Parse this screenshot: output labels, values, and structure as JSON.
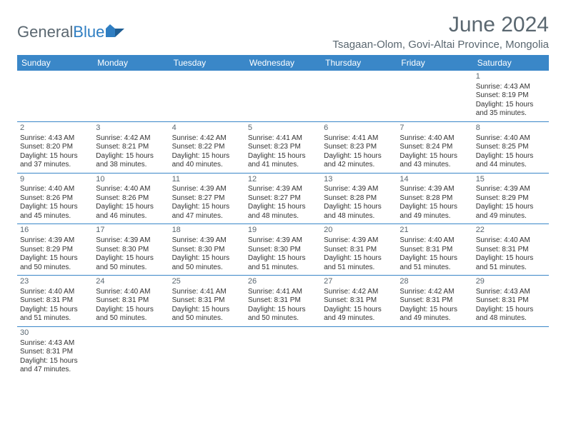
{
  "logo": {
    "part1": "General",
    "part2": "Blue"
  },
  "title": "June 2024",
  "location": "Tsagaan-Olom, Govi-Altai Province, Mongolia",
  "colors": {
    "header_bg": "#3a87c8",
    "header_text": "#ffffff",
    "text_muted": "#5a6770",
    "cell_border": "#3a87c8",
    "body_text": "#333333",
    "background": "#ffffff"
  },
  "fonts": {
    "title_size": 30,
    "location_size": 15,
    "day_header_size": 12,
    "cell_size": 10
  },
  "day_headers": [
    "Sunday",
    "Monday",
    "Tuesday",
    "Wednesday",
    "Thursday",
    "Friday",
    "Saturday"
  ],
  "weeks": [
    [
      {
        "empty": true
      },
      {
        "empty": true
      },
      {
        "empty": true
      },
      {
        "empty": true
      },
      {
        "empty": true
      },
      {
        "empty": true
      },
      {
        "num": "1",
        "sunrise": "Sunrise: 4:43 AM",
        "sunset": "Sunset: 8:19 PM",
        "daylight1": "Daylight: 15 hours",
        "daylight2": "and 35 minutes."
      }
    ],
    [
      {
        "num": "2",
        "sunrise": "Sunrise: 4:43 AM",
        "sunset": "Sunset: 8:20 PM",
        "daylight1": "Daylight: 15 hours",
        "daylight2": "and 37 minutes."
      },
      {
        "num": "3",
        "sunrise": "Sunrise: 4:42 AM",
        "sunset": "Sunset: 8:21 PM",
        "daylight1": "Daylight: 15 hours",
        "daylight2": "and 38 minutes."
      },
      {
        "num": "4",
        "sunrise": "Sunrise: 4:42 AM",
        "sunset": "Sunset: 8:22 PM",
        "daylight1": "Daylight: 15 hours",
        "daylight2": "and 40 minutes."
      },
      {
        "num": "5",
        "sunrise": "Sunrise: 4:41 AM",
        "sunset": "Sunset: 8:23 PM",
        "daylight1": "Daylight: 15 hours",
        "daylight2": "and 41 minutes."
      },
      {
        "num": "6",
        "sunrise": "Sunrise: 4:41 AM",
        "sunset": "Sunset: 8:23 PM",
        "daylight1": "Daylight: 15 hours",
        "daylight2": "and 42 minutes."
      },
      {
        "num": "7",
        "sunrise": "Sunrise: 4:40 AM",
        "sunset": "Sunset: 8:24 PM",
        "daylight1": "Daylight: 15 hours",
        "daylight2": "and 43 minutes."
      },
      {
        "num": "8",
        "sunrise": "Sunrise: 4:40 AM",
        "sunset": "Sunset: 8:25 PM",
        "daylight1": "Daylight: 15 hours",
        "daylight2": "and 44 minutes."
      }
    ],
    [
      {
        "num": "9",
        "sunrise": "Sunrise: 4:40 AM",
        "sunset": "Sunset: 8:26 PM",
        "daylight1": "Daylight: 15 hours",
        "daylight2": "and 45 minutes."
      },
      {
        "num": "10",
        "sunrise": "Sunrise: 4:40 AM",
        "sunset": "Sunset: 8:26 PM",
        "daylight1": "Daylight: 15 hours",
        "daylight2": "and 46 minutes."
      },
      {
        "num": "11",
        "sunrise": "Sunrise: 4:39 AM",
        "sunset": "Sunset: 8:27 PM",
        "daylight1": "Daylight: 15 hours",
        "daylight2": "and 47 minutes."
      },
      {
        "num": "12",
        "sunrise": "Sunrise: 4:39 AM",
        "sunset": "Sunset: 8:27 PM",
        "daylight1": "Daylight: 15 hours",
        "daylight2": "and 48 minutes."
      },
      {
        "num": "13",
        "sunrise": "Sunrise: 4:39 AM",
        "sunset": "Sunset: 8:28 PM",
        "daylight1": "Daylight: 15 hours",
        "daylight2": "and 48 minutes."
      },
      {
        "num": "14",
        "sunrise": "Sunrise: 4:39 AM",
        "sunset": "Sunset: 8:28 PM",
        "daylight1": "Daylight: 15 hours",
        "daylight2": "and 49 minutes."
      },
      {
        "num": "15",
        "sunrise": "Sunrise: 4:39 AM",
        "sunset": "Sunset: 8:29 PM",
        "daylight1": "Daylight: 15 hours",
        "daylight2": "and 49 minutes."
      }
    ],
    [
      {
        "num": "16",
        "sunrise": "Sunrise: 4:39 AM",
        "sunset": "Sunset: 8:29 PM",
        "daylight1": "Daylight: 15 hours",
        "daylight2": "and 50 minutes."
      },
      {
        "num": "17",
        "sunrise": "Sunrise: 4:39 AM",
        "sunset": "Sunset: 8:30 PM",
        "daylight1": "Daylight: 15 hours",
        "daylight2": "and 50 minutes."
      },
      {
        "num": "18",
        "sunrise": "Sunrise: 4:39 AM",
        "sunset": "Sunset: 8:30 PM",
        "daylight1": "Daylight: 15 hours",
        "daylight2": "and 50 minutes."
      },
      {
        "num": "19",
        "sunrise": "Sunrise: 4:39 AM",
        "sunset": "Sunset: 8:30 PM",
        "daylight1": "Daylight: 15 hours",
        "daylight2": "and 51 minutes."
      },
      {
        "num": "20",
        "sunrise": "Sunrise: 4:39 AM",
        "sunset": "Sunset: 8:31 PM",
        "daylight1": "Daylight: 15 hours",
        "daylight2": "and 51 minutes."
      },
      {
        "num": "21",
        "sunrise": "Sunrise: 4:40 AM",
        "sunset": "Sunset: 8:31 PM",
        "daylight1": "Daylight: 15 hours",
        "daylight2": "and 51 minutes."
      },
      {
        "num": "22",
        "sunrise": "Sunrise: 4:40 AM",
        "sunset": "Sunset: 8:31 PM",
        "daylight1": "Daylight: 15 hours",
        "daylight2": "and 51 minutes."
      }
    ],
    [
      {
        "num": "23",
        "sunrise": "Sunrise: 4:40 AM",
        "sunset": "Sunset: 8:31 PM",
        "daylight1": "Daylight: 15 hours",
        "daylight2": "and 51 minutes."
      },
      {
        "num": "24",
        "sunrise": "Sunrise: 4:40 AM",
        "sunset": "Sunset: 8:31 PM",
        "daylight1": "Daylight: 15 hours",
        "daylight2": "and 50 minutes."
      },
      {
        "num": "25",
        "sunrise": "Sunrise: 4:41 AM",
        "sunset": "Sunset: 8:31 PM",
        "daylight1": "Daylight: 15 hours",
        "daylight2": "and 50 minutes."
      },
      {
        "num": "26",
        "sunrise": "Sunrise: 4:41 AM",
        "sunset": "Sunset: 8:31 PM",
        "daylight1": "Daylight: 15 hours",
        "daylight2": "and 50 minutes."
      },
      {
        "num": "27",
        "sunrise": "Sunrise: 4:42 AM",
        "sunset": "Sunset: 8:31 PM",
        "daylight1": "Daylight: 15 hours",
        "daylight2": "and 49 minutes."
      },
      {
        "num": "28",
        "sunrise": "Sunrise: 4:42 AM",
        "sunset": "Sunset: 8:31 PM",
        "daylight1": "Daylight: 15 hours",
        "daylight2": "and 49 minutes."
      },
      {
        "num": "29",
        "sunrise": "Sunrise: 4:43 AM",
        "sunset": "Sunset: 8:31 PM",
        "daylight1": "Daylight: 15 hours",
        "daylight2": "and 48 minutes."
      }
    ],
    [
      {
        "num": "30",
        "sunrise": "Sunrise: 4:43 AM",
        "sunset": "Sunset: 8:31 PM",
        "daylight1": "Daylight: 15 hours",
        "daylight2": "and 47 minutes."
      },
      {
        "empty": true
      },
      {
        "empty": true
      },
      {
        "empty": true
      },
      {
        "empty": true
      },
      {
        "empty": true
      },
      {
        "empty": true
      }
    ]
  ]
}
